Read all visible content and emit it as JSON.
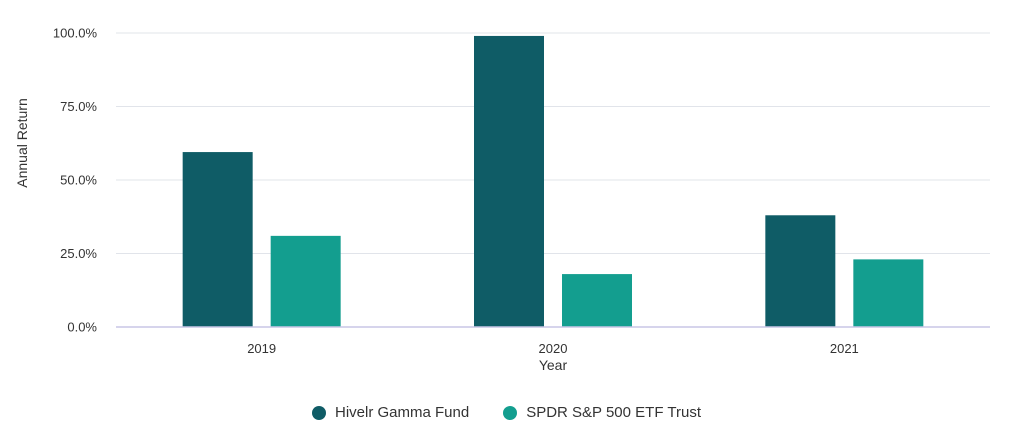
{
  "chart_data": {
    "type": "bar",
    "categories": [
      "2019",
      "2020",
      "2021"
    ],
    "series": [
      {
        "name": "Hivelr Gamma Fund",
        "color": "#0f5c66",
        "values": [
          59.5,
          99.0,
          38.0
        ]
      },
      {
        "name": "SPDR S&P 500 ETF Trust",
        "color": "#139e8f",
        "values": [
          31.0,
          18.0,
          23.0
        ]
      }
    ],
    "xlabel": "Year",
    "ylabel": "Annual Return",
    "ylim": [
      0,
      100
    ],
    "yticks": [
      "0.0%",
      "25.0%",
      "50.0%",
      "75.0%",
      "100.0%"
    ],
    "grid": true,
    "legend_position": "bottom"
  }
}
